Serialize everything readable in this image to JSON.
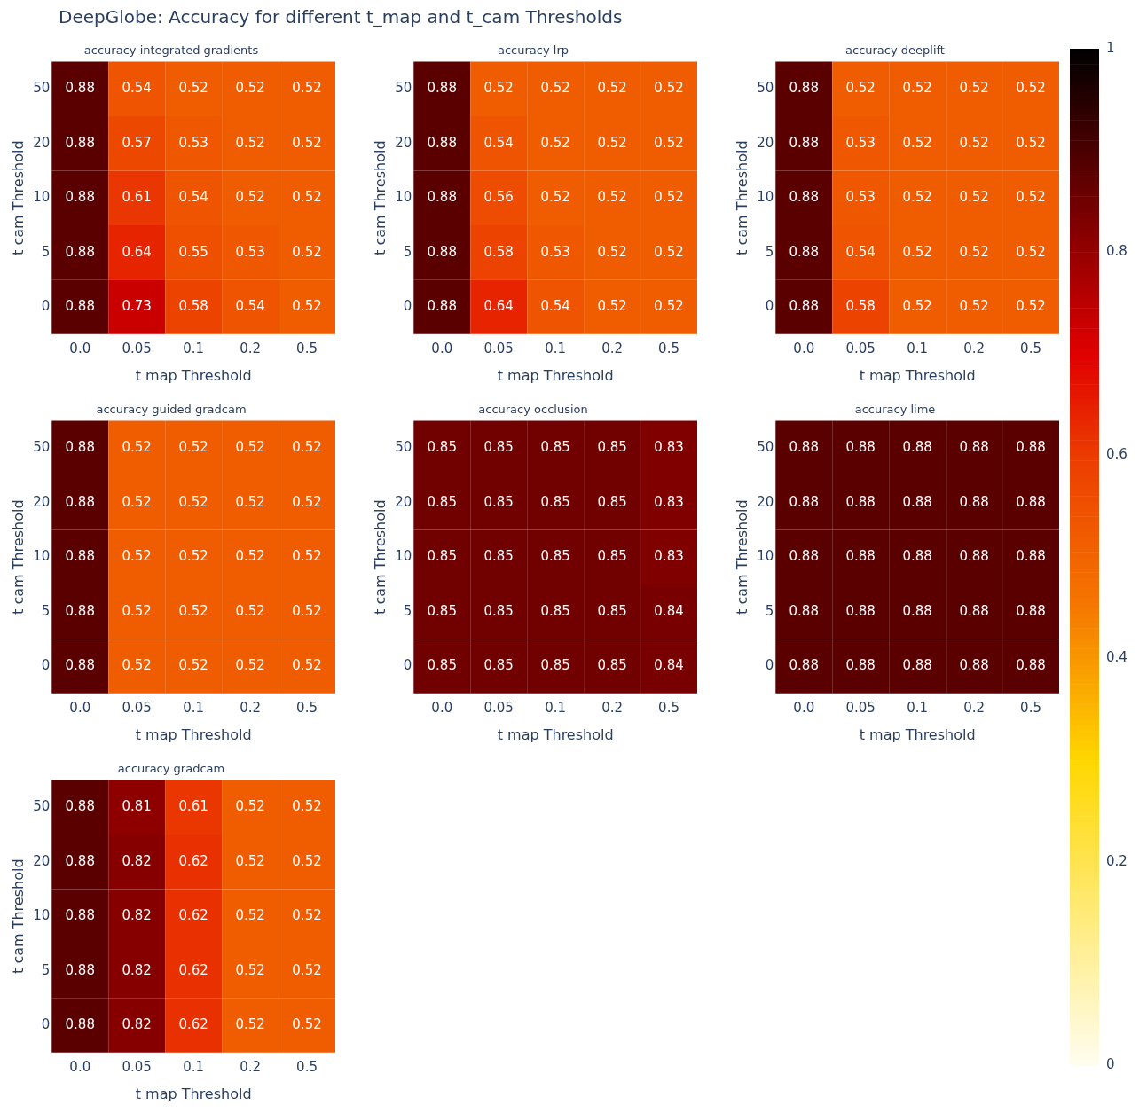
{
  "chart_data": [
    {
      "type": "heatmap",
      "title": "accuracy integrated gradients",
      "annotations": [
        "DeepGlobe: Accuracy for different t_map and t_cam Thresholds"
      ],
      "xlabel": "t map Threshold",
      "ylabel": "t cam Threshold",
      "categories": [
        "0.0",
        "0.05",
        "0.1",
        "0.2",
        "0.5"
      ],
      "y_categories": [
        "50",
        "20",
        "10",
        "5",
        "0"
      ],
      "cells": [
        [
          0.88,
          0.54,
          0.52,
          0.52,
          0.52
        ],
        [
          0.88,
          0.57,
          0.53,
          0.52,
          0.52
        ],
        [
          0.88,
          0.61,
          0.54,
          0.52,
          0.52
        ],
        [
          0.88,
          0.64,
          0.55,
          0.53,
          0.52
        ],
        [
          0.88,
          0.73,
          0.58,
          0.54,
          0.52
        ]
      ],
      "data_labels": true,
      "clim": [
        0,
        1
      ],
      "cticks": [
        0,
        0.2,
        0.4,
        0.6,
        0.8,
        1
      ]
    },
    {
      "type": "heatmap",
      "title": "accuracy lrp",
      "xlabel": "t map Threshold",
      "ylabel": "t cam Threshold",
      "categories": [
        "0.0",
        "0.05",
        "0.1",
        "0.2",
        "0.5"
      ],
      "y_categories": [
        "50",
        "20",
        "10",
        "5",
        "0"
      ],
      "cells": [
        [
          0.88,
          0.52,
          0.52,
          0.52,
          0.52
        ],
        [
          0.88,
          0.54,
          0.52,
          0.52,
          0.52
        ],
        [
          0.88,
          0.56,
          0.52,
          0.52,
          0.52
        ],
        [
          0.88,
          0.58,
          0.53,
          0.52,
          0.52
        ],
        [
          0.88,
          0.64,
          0.54,
          0.52,
          0.52
        ]
      ],
      "data_labels": true
    },
    {
      "type": "heatmap",
      "title": "accuracy deeplift",
      "xlabel": "t map Threshold",
      "ylabel": "t cam Threshold",
      "categories": [
        "0.0",
        "0.05",
        "0.1",
        "0.2",
        "0.5"
      ],
      "y_categories": [
        "50",
        "20",
        "10",
        "5",
        "0"
      ],
      "cells": [
        [
          0.88,
          0.52,
          0.52,
          0.52,
          0.52
        ],
        [
          0.88,
          0.53,
          0.52,
          0.52,
          0.52
        ],
        [
          0.88,
          0.53,
          0.52,
          0.52,
          0.52
        ],
        [
          0.88,
          0.54,
          0.52,
          0.52,
          0.52
        ],
        [
          0.88,
          0.58,
          0.52,
          0.52,
          0.52
        ]
      ],
      "data_labels": true
    },
    {
      "type": "heatmap",
      "title": "accuracy guided gradcam",
      "xlabel": "t map Threshold",
      "ylabel": "t cam Threshold",
      "categories": [
        "0.0",
        "0.05",
        "0.1",
        "0.2",
        "0.5"
      ],
      "y_categories": [
        "50",
        "20",
        "10",
        "5",
        "0"
      ],
      "cells": [
        [
          0.88,
          0.52,
          0.52,
          0.52,
          0.52
        ],
        [
          0.88,
          0.52,
          0.52,
          0.52,
          0.52
        ],
        [
          0.88,
          0.52,
          0.52,
          0.52,
          0.52
        ],
        [
          0.88,
          0.52,
          0.52,
          0.52,
          0.52
        ],
        [
          0.88,
          0.52,
          0.52,
          0.52,
          0.52
        ]
      ],
      "data_labels": true
    },
    {
      "type": "heatmap",
      "title": "accuracy occlusion",
      "xlabel": "t map Threshold",
      "ylabel": "t cam Threshold",
      "categories": [
        "0.0",
        "0.05",
        "0.1",
        "0.2",
        "0.5"
      ],
      "y_categories": [
        "50",
        "20",
        "10",
        "5",
        "0"
      ],
      "cells": [
        [
          0.85,
          0.85,
          0.85,
          0.85,
          0.83
        ],
        [
          0.85,
          0.85,
          0.85,
          0.85,
          0.83
        ],
        [
          0.85,
          0.85,
          0.85,
          0.85,
          0.83
        ],
        [
          0.85,
          0.85,
          0.85,
          0.85,
          0.84
        ],
        [
          0.85,
          0.85,
          0.85,
          0.85,
          0.84
        ]
      ],
      "data_labels": true
    },
    {
      "type": "heatmap",
      "title": "accuracy lime",
      "xlabel": "t map Threshold",
      "ylabel": "t cam Threshold",
      "categories": [
        "0.0",
        "0.05",
        "0.1",
        "0.2",
        "0.5"
      ],
      "y_categories": [
        "50",
        "20",
        "10",
        "5",
        "0"
      ],
      "cells": [
        [
          0.88,
          0.88,
          0.88,
          0.88,
          0.88
        ],
        [
          0.88,
          0.88,
          0.88,
          0.88,
          0.88
        ],
        [
          0.88,
          0.88,
          0.88,
          0.88,
          0.88
        ],
        [
          0.88,
          0.88,
          0.88,
          0.88,
          0.88
        ],
        [
          0.88,
          0.88,
          0.88,
          0.88,
          0.88
        ]
      ],
      "data_labels": true
    },
    {
      "type": "heatmap",
      "title": "accuracy gradcam",
      "xlabel": "t map Threshold",
      "ylabel": "t cam Threshold",
      "categories": [
        "0.0",
        "0.05",
        "0.1",
        "0.2",
        "0.5"
      ],
      "y_categories": [
        "50",
        "20",
        "10",
        "5",
        "0"
      ],
      "cells": [
        [
          0.88,
          0.81,
          0.61,
          0.52,
          0.52
        ],
        [
          0.88,
          0.82,
          0.62,
          0.52,
          0.52
        ],
        [
          0.88,
          0.82,
          0.62,
          0.52,
          0.52
        ],
        [
          0.88,
          0.82,
          0.62,
          0.52,
          0.52
        ],
        [
          0.88,
          0.82,
          0.62,
          0.52,
          0.52
        ]
      ],
      "data_labels": true
    }
  ]
}
